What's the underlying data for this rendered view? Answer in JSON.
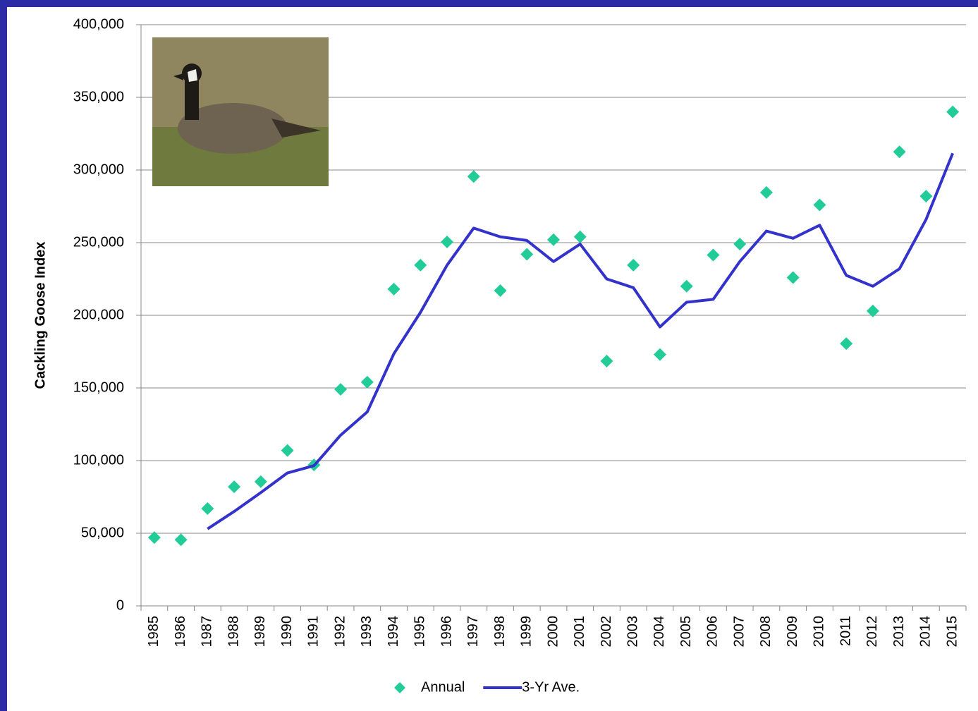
{
  "chart_data": {
    "type": "line",
    "y_axis_label": "Cackling Goose Index",
    "categories": [
      "1985",
      "1986",
      "1987",
      "1988",
      "1989",
      "1990",
      "1991",
      "1992",
      "1993",
      "1994",
      "1995",
      "1996",
      "1997",
      "1998",
      "1999",
      "2000",
      "2001",
      "2002",
      "2003",
      "2004",
      "2005",
      "2006",
      "2007",
      "2008",
      "2009",
      "2010",
      "2011",
      "2012",
      "2013",
      "2014",
      "2015"
    ],
    "series": [
      {
        "name": "Annual",
        "color": "#22cc99",
        "style": "marker",
        "values": [
          47000,
          45500,
          67000,
          82000,
          85500,
          107000,
          97000,
          149000,
          154000,
          218000,
          234500,
          250500,
          295500,
          217000,
          242000,
          252000,
          254000,
          168500,
          234500,
          173000,
          220000,
          241500,
          249000,
          284500,
          226000,
          276000,
          180500,
          203000,
          312500,
          282000,
          340000
        ]
      },
      {
        "name": "3-Yr Ave.",
        "color": "#3333cc",
        "style": "line",
        "values": [
          null,
          null,
          53000,
          65000,
          78000,
          91500,
          96500,
          117500,
          133500,
          173500,
          202000,
          234500,
          260000,
          254000,
          251500,
          237000,
          249000,
          225000,
          219000,
          192000,
          209000,
          211000,
          237000,
          258000,
          253000,
          262000,
          227500,
          220000,
          232000,
          266000,
          311500
        ]
      }
    ],
    "ylim": [
      0,
      400000
    ],
    "yticks": [
      0,
      {
        "value": 50000,
        "label": "50,000"
      },
      {
        "value": 100000,
        "label": "100,000"
      },
      {
        "value": 150000,
        "label": "150,000"
      },
      {
        "value": 200000,
        "label": "200,000"
      },
      {
        "value": 250000,
        "label": "250,000"
      },
      {
        "value": 300000,
        "label": "300,000"
      },
      {
        "value": 350000,
        "label": "350,000"
      },
      {
        "value": 400000,
        "label": "400,000"
      }
    ],
    "grid": true,
    "legend": "bottom"
  }
}
